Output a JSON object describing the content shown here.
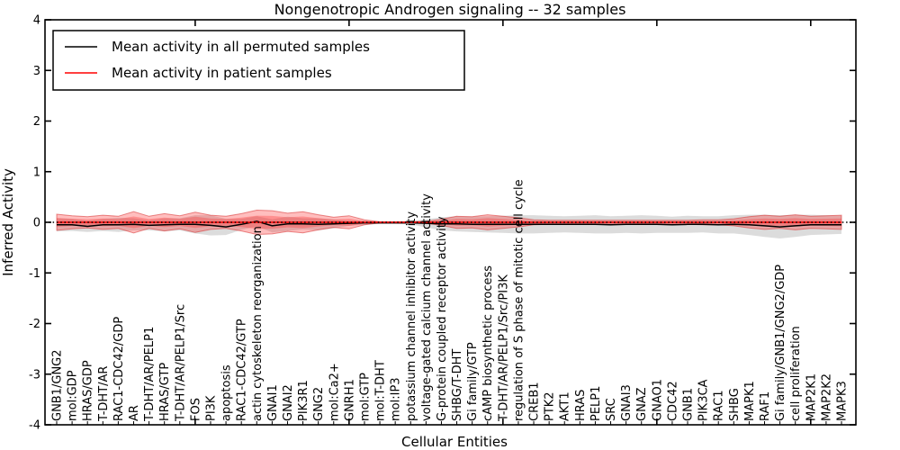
{
  "figure": {
    "title": "Nongenotropic Androgen signaling -- 32 samples",
    "xlabel": "Cellular Entities",
    "ylabel": "Inferred Activity",
    "background": "#ffffff"
  },
  "legend": {
    "entries": [
      {
        "label": "Mean activity in all permuted samples",
        "color": "#000000"
      },
      {
        "label": "Mean activity in patient samples",
        "color": "#ff0000"
      }
    ]
  },
  "colors": {
    "permuted_line": "#000000",
    "patient_line": "#ff0000",
    "zero_line": "#000000",
    "permuted_band": "rgba(130,130,130,0.28)",
    "patient_band": "rgba(255,40,40,0.30)",
    "patient_band_inner": "rgba(255,40,40,0.30)",
    "patient_band_edge": "rgba(215,45,45,0.55)",
    "frame": "#000000"
  },
  "chart_data": {
    "type": "line",
    "title": "Nongenotropic Androgen signaling -- 32 samples",
    "xlabel": "Cellular Entities",
    "ylabel": "Inferred Activity",
    "ylim": [
      -4,
      4
    ],
    "yticks": [
      "4",
      "3",
      "2",
      "1",
      "0",
      "-1",
      "-2",
      "-3",
      "-4"
    ],
    "ytick_values": [
      4,
      3,
      2,
      1,
      0,
      -1,
      -2,
      -3,
      -4
    ],
    "xtick_major_indices": [
      9,
      19,
      29,
      39,
      49
    ],
    "grid": "off",
    "legend_position": "upper left",
    "zero_reference_line": {
      "y": 0,
      "style": "dotted",
      "color": "#000000"
    },
    "categories": [
      "GNB1/GNG2",
      "mol:GDP",
      "HRAS/GDP",
      "T-DHT/AR",
      "RAC1-CDC42/GDP",
      "AR",
      "T-DHT/AR/PELP1",
      "HRAS/GTP",
      "T-DHT/AR/PELP1/Src",
      "FOS",
      "PI3K",
      "apoptosis",
      "RAC1-CDC42/GTP",
      "actin cytoskeleton reorganization",
      "GNAI1",
      "GNAI2",
      "PIK3R1",
      "GNG2",
      "mol:Ca2+",
      "GNRH1",
      "mol:GTP",
      "mol:T-DHT",
      "mol:IP3",
      "potassium channel inhibitor activity",
      "voltage-gated calcium channel activity",
      "G-protein coupled receptor activity",
      "SHBG/T-DHT",
      "Gi family/GTP",
      "cAMP biosynthetic process",
      "T-DHT/AR/PELP1/Src/PI3K",
      "regulation of S phase of mitotic cell cycle",
      "CREB1",
      "PTK2",
      "AKT1",
      "HRAS",
      "PELP1",
      "SRC",
      "GNAI3",
      "GNAZ",
      "GNAO1",
      "CDC42",
      "GNB1",
      "PIK3CA",
      "RAC1",
      "SHBG",
      "MAPK1",
      "RAF1",
      "Gi family/GNB1/GNG2/GDP",
      "cell proliferation",
      "MAP2K1",
      "MAP2K2",
      "MAPK3"
    ],
    "series": [
      {
        "name": "Mean activity in all permuted samples",
        "color": "#000000",
        "style": "solid",
        "values": [
          -0.05,
          -0.05,
          -0.08,
          -0.05,
          -0.05,
          -0.04,
          -0.06,
          -0.05,
          -0.04,
          -0.04,
          -0.06,
          -0.09,
          -0.04,
          0.02,
          -0.07,
          -0.03,
          -0.03,
          -0.04,
          -0.03,
          -0.02,
          -0.01,
          -0.01,
          -0.01,
          -0.01,
          -0.02,
          -0.03,
          -0.03,
          -0.04,
          -0.04,
          -0.04,
          -0.04,
          -0.04,
          -0.04,
          -0.04,
          -0.04,
          -0.04,
          -0.05,
          -0.04,
          -0.04,
          -0.04,
          -0.05,
          -0.04,
          -0.04,
          -0.05,
          -0.04,
          -0.05,
          -0.07,
          -0.09,
          -0.07,
          -0.05,
          -0.05,
          -0.05
        ]
      },
      {
        "name": "Std of activity in all permuted samples (band half-width)",
        "color": "rgba(130,130,130,0.28)",
        "style": "band",
        "values": [
          0.13,
          0.12,
          0.11,
          0.12,
          0.14,
          0.12,
          0.1,
          0.13,
          0.12,
          0.18,
          0.2,
          0.16,
          0.11,
          0.1,
          0.13,
          0.14,
          0.11,
          0.12,
          0.09,
          0.05,
          0.04,
          0.02,
          0.02,
          0.03,
          0.08,
          0.13,
          0.15,
          0.15,
          0.16,
          0.17,
          0.18,
          0.18,
          0.17,
          0.16,
          0.17,
          0.18,
          0.17,
          0.17,
          0.18,
          0.17,
          0.16,
          0.17,
          0.16,
          0.17,
          0.18,
          0.2,
          0.22,
          0.23,
          0.22,
          0.2,
          0.19,
          0.18
        ]
      },
      {
        "name": "Mean activity in patient samples",
        "color": "#ff0000",
        "style": "solid",
        "values": [
          0,
          0,
          0,
          0,
          0,
          0,
          0,
          0,
          0,
          0,
          0,
          0,
          0,
          0,
          0,
          0,
          0,
          0,
          0,
          0,
          0,
          0,
          0,
          0,
          0,
          0,
          0,
          0,
          0,
          0,
          0,
          0,
          0,
          0,
          0,
          0,
          0,
          0,
          0,
          0,
          0,
          0,
          0,
          0,
          0,
          0,
          0,
          0,
          0,
          0,
          0,
          0
        ]
      },
      {
        "name": "Std of activity in patient samples (band half-width)",
        "color": "rgba(255,40,40,0.30)",
        "style": "band",
        "values": [
          0.16,
          0.13,
          0.11,
          0.14,
          0.12,
          0.21,
          0.12,
          0.17,
          0.13,
          0.2,
          0.14,
          0.12,
          0.17,
          0.24,
          0.23,
          0.18,
          0.21,
          0.15,
          0.1,
          0.13,
          0.05,
          0.01,
          0.01,
          0.01,
          0.02,
          0.06,
          0.12,
          0.11,
          0.15,
          0.12,
          0.09,
          0.05,
          0.04,
          0.04,
          0.04,
          0.04,
          0.04,
          0.04,
          0.04,
          0.04,
          0.04,
          0.04,
          0.05,
          0.05,
          0.07,
          0.11,
          0.14,
          0.12,
          0.15,
          0.12,
          0.13,
          0.14
        ]
      }
    ]
  }
}
